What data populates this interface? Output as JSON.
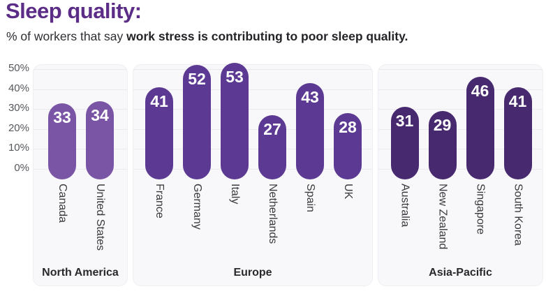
{
  "colors": {
    "title": "#5b2d87",
    "subtitle": "#2f2f33",
    "panel_bg": "#f8f8fa",
    "gridline": "#eaeaef",
    "axis_text": "#55575c",
    "country_text": "#3a3a3e",
    "region_text": "#29292c",
    "bar_label_text": "#ffffff"
  },
  "chart_data": {
    "type": "bar",
    "title": "Sleep quality:",
    "subtitle_regular": "% of workers that say ",
    "subtitle_bold": "work stress is contributing to poor sleep quality.",
    "xlabel": "",
    "ylabel": "",
    "ylim": [
      0,
      50
    ],
    "y_ticks": [
      "0%",
      "10%",
      "20%",
      "30%",
      "40%",
      "50%"
    ],
    "grid": true,
    "legend": false,
    "groups": [
      {
        "name": "North America",
        "bar_color": "#7b55a5",
        "categories": [
          "Canada",
          "United States"
        ],
        "values": [
          33,
          34
        ]
      },
      {
        "name": "Europe",
        "bar_color": "#5c3a93",
        "categories": [
          "France",
          "Germany",
          "Italy",
          "Netherlands",
          "Spain",
          "UK"
        ],
        "values": [
          41,
          52,
          53,
          27,
          43,
          28
        ]
      },
      {
        "name": "Asia-Pacific",
        "bar_color": "#46296e",
        "categories": [
          "Australia",
          "New Zealand",
          "Singapore",
          "South Korea"
        ],
        "values": [
          31,
          29,
          46,
          41
        ]
      }
    ]
  }
}
